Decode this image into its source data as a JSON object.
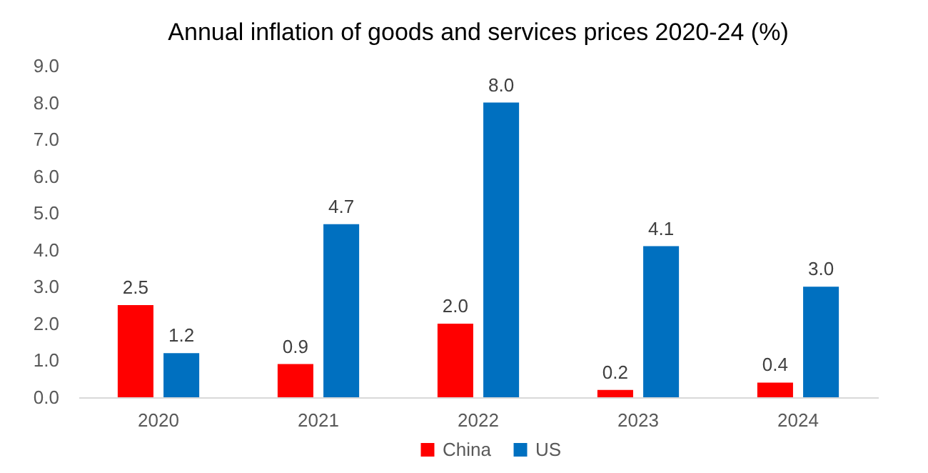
{
  "chart_data": {
    "type": "bar",
    "title": "Annual inflation of goods and services prices 2020-24 (%)",
    "categories": [
      "2020",
      "2021",
      "2022",
      "2023",
      "2024"
    ],
    "series": [
      {
        "name": "China",
        "color": "#ff0000",
        "values": [
          2.5,
          0.9,
          2.0,
          0.2,
          0.4
        ],
        "value_labels": [
          "2.5",
          "0.9",
          "2.0",
          "0.2",
          "0.4"
        ]
      },
      {
        "name": "US",
        "color": "#0070c0",
        "values": [
          1.2,
          4.7,
          8.0,
          4.1,
          3.0
        ],
        "value_labels": [
          "1.2",
          "4.7",
          "8.0",
          "4.1",
          "3.0"
        ]
      }
    ],
    "ylim": [
      0,
      9
    ],
    "yticks": [
      {
        "value": 0,
        "label": "0.0"
      },
      {
        "value": 1,
        "label": "1.0"
      },
      {
        "value": 2,
        "label": "2.0"
      },
      {
        "value": 3,
        "label": "3.0"
      },
      {
        "value": 4,
        "label": "4.0"
      },
      {
        "value": 5,
        "label": "5.0"
      },
      {
        "value": 6,
        "label": "6.0"
      },
      {
        "value": 7,
        "label": "7.0"
      },
      {
        "value": 8,
        "label": "8.0"
      },
      {
        "value": 9,
        "label": "9.0"
      }
    ],
    "legend": "bottom"
  }
}
